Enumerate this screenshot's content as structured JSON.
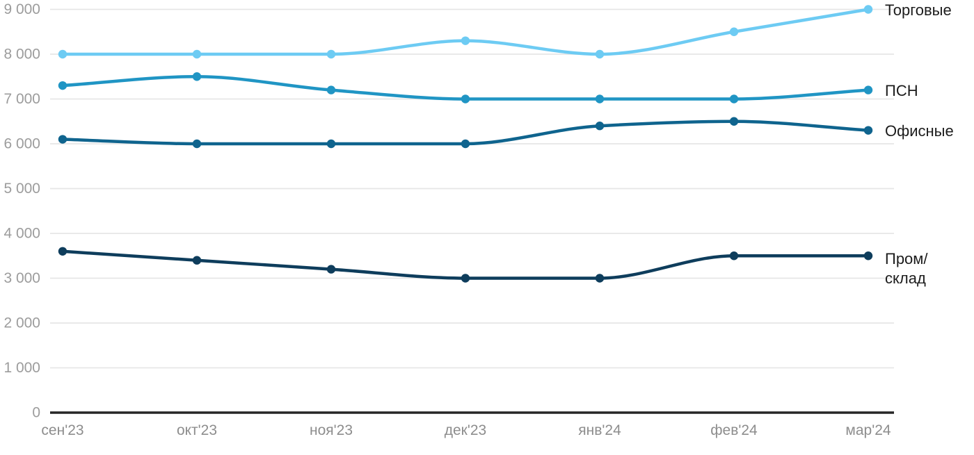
{
  "chart_data": {
    "type": "line",
    "title": "",
    "categories": [
      "сен'23",
      "окт'23",
      "ноя'23",
      "дек'23",
      "янв'24",
      "фев'24",
      "мар'24"
    ],
    "series": [
      {
        "key": "torgovye",
        "name": "Торговые",
        "color": "#6DCBF3",
        "values": [
          8000,
          8000,
          8000,
          8300,
          8000,
          8500,
          9000
        ],
        "label_lines": [
          "Торговые"
        ]
      },
      {
        "key": "psn",
        "name": "ПСН",
        "color": "#2095C4",
        "values": [
          7300,
          7500,
          7200,
          7000,
          7000,
          7000,
          7200
        ],
        "label_lines": [
          "ПСН"
        ]
      },
      {
        "key": "ofisnye",
        "name": "Офисные",
        "color": "#0F648E",
        "values": [
          6100,
          6000,
          6000,
          6000,
          6400,
          6500,
          6300
        ],
        "label_lines": [
          "Офисные"
        ]
      },
      {
        "key": "prom-sklad",
        "name": "Пром/склад",
        "color": "#0E3D5C",
        "values": [
          3600,
          3400,
          3200,
          3000,
          3000,
          3500,
          3500
        ],
        "label_lines": [
          "Пром/",
          "склад"
        ]
      }
    ],
    "y_axis": {
      "min": 0,
      "max": 9000,
      "step": 1000,
      "tick_labels": [
        "0",
        "1 000",
        "2 000",
        "3 000",
        "4 000",
        "5 000",
        "6 000",
        "7 000",
        "8 000",
        "9 000"
      ]
    },
    "x_axis": {
      "labels": [
        "сен'23",
        "окт'23",
        "ноя'23",
        "дек'23",
        "янв'24",
        "фев'24",
        "мар'24"
      ]
    },
    "grid": true,
    "legend_position": "right-inline",
    "ylim": [
      0,
      9000
    ],
    "palette": {
      "background": "#FFFFFF",
      "grid_line": "#E6E6E6",
      "axis_line": "#262626",
      "y_tick_text": "#9C9C9C",
      "x_tick_text": "#8D8D8D",
      "series_label_text": "#1C1C1C"
    }
  }
}
